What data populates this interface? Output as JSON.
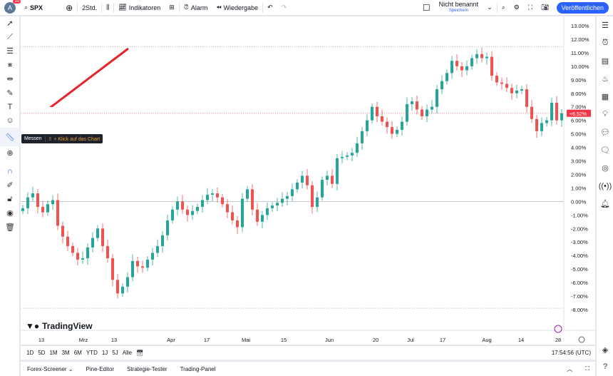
{
  "topbar": {
    "avatar_letter": "A",
    "notifications": "10",
    "symbol": "SPX",
    "interval": "2Std.",
    "indicators": "Indikatoren",
    "alarm": "Alarm",
    "replay": "Wiedergabe",
    "layout_name": "Nicht benannt",
    "save": "Speichern",
    "publish": "Veröffentlichen"
  },
  "tooltip": {
    "label": "Messen",
    "shortcut": "⇧ + Klick auf das Chart"
  },
  "logo": "TradingView",
  "ranges": [
    "1D",
    "5D",
    "1M",
    "3M",
    "6M",
    "YTD",
    "1J",
    "5J",
    "Alle"
  ],
  "clock": "17:54:56 (UTC)",
  "bottom_tabs": [
    "Forex-Screener",
    "Pine-Editor",
    "Strategie-Tester",
    "Trading-Panel"
  ],
  "colors": {
    "up": "#26a69a",
    "down": "#ef5350",
    "accent": "#2962ff",
    "price_label": "#f23645"
  },
  "chart_data": {
    "type": "candlestick",
    "ylabel": "",
    "ylim": [
      -8,
      13
    ],
    "y_ticks": [
      "13.00%",
      "12.00%",
      "11.00%",
      "10.00%",
      "9.00%",
      "8.00%",
      "7.00%",
      "6.00%",
      "5.00%",
      "4.00%",
      "3.00%",
      "2.00%",
      "1.00%",
      "0.00%",
      "-1.00%",
      "-2.00%",
      "-3.00%",
      "-4.00%",
      "-5.00%",
      "-6.00%",
      "-7.00%",
      "-8.00%"
    ],
    "x_ticks": [
      "13",
      "Mrz",
      "13",
      "Apr",
      "17",
      "Mai",
      "15",
      "Jun",
      "20",
      "Jul",
      "17",
      "Aug",
      "14",
      "28"
    ],
    "last_value": "+6.52%",
    "closes": [
      -0.5,
      0.3,
      0.6,
      -0.4,
      -0.8,
      -0.2,
      0.1,
      -1.8,
      -2.6,
      -3.3,
      -3.8,
      -4.3,
      -4.2,
      -3.4,
      -2.7,
      -2.0,
      -3.3,
      -4.2,
      -5.8,
      -6.8,
      -6.3,
      -5.6,
      -4.4,
      -4.8,
      -4.9,
      -4.3,
      -3.8,
      -3.3,
      -2.5,
      -1.4,
      -0.6,
      0.0,
      -0.6,
      -1.0,
      -0.7,
      -0.4,
      0.1,
      0.5,
      0.6,
      0.3,
      -0.2,
      -0.8,
      -1.4,
      -1.9,
      0.2,
      0.9,
      -0.6,
      -1.5,
      -1.0,
      -0.5,
      -0.3,
      -0.1,
      0.2,
      0.4,
      0.9,
      1.4,
      1.9,
      1.2,
      -0.4,
      0.3,
      1.6,
      1.9,
      1.3,
      3.2,
      3.3,
      3.4,
      3.6,
      4.3,
      5.2,
      6.0,
      7.0,
      6.3,
      5.9,
      5.5,
      5.0,
      5.3,
      5.9,
      7.2,
      7.4,
      6.8,
      6.3,
      6.8,
      7.0,
      8.3,
      8.9,
      9.5,
      10.4,
      10.0,
      9.7,
      10.0,
      10.6,
      10.9,
      10.6,
      10.7,
      9.3,
      8.8,
      8.7,
      8.4,
      8.0,
      8.2,
      8.3,
      7.0,
      6.1,
      5.2,
      5.8,
      6.0,
      7.3,
      6.0,
      6.52
    ]
  }
}
